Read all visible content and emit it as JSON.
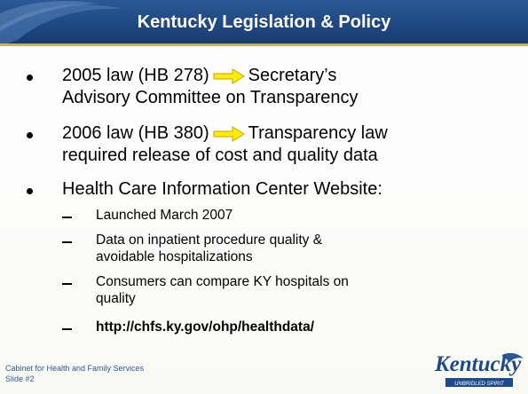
{
  "header": {
    "title": "Kentucky Legislation & Policy"
  },
  "bullets": [
    {
      "lead": "2005 law (HB 278)",
      "lines": [
        "Secretary’s",
        "Advisory Committee on Transparency"
      ]
    },
    {
      "lead": "2006 law (HB 380)",
      "lines": [
        "Transparency law",
        "required release of cost and quality data"
      ]
    },
    {
      "lines": [
        "Health Care Information Center Website:"
      ],
      "subitems": [
        {
          "lines": [
            "Launched March 2007"
          ]
        },
        {
          "lines": [
            "Data on inpatient procedure quality &",
            "avoidable hospitalizations"
          ]
        },
        {
          "lines": [
            "Consumers can compare KY hospitals on",
            "quality"
          ]
        },
        {
          "lines": [
            "http://chfs.ky.gov/ohp/healthdata/"
          ],
          "bold": true
        }
      ]
    }
  ],
  "footer": {
    "organization": "Cabinet for Health and Family Services",
    "slide": "Slide #2"
  },
  "logo": {
    "name": "Kentucky",
    "tagline": "UNBRIDLED SPIRIT"
  }
}
